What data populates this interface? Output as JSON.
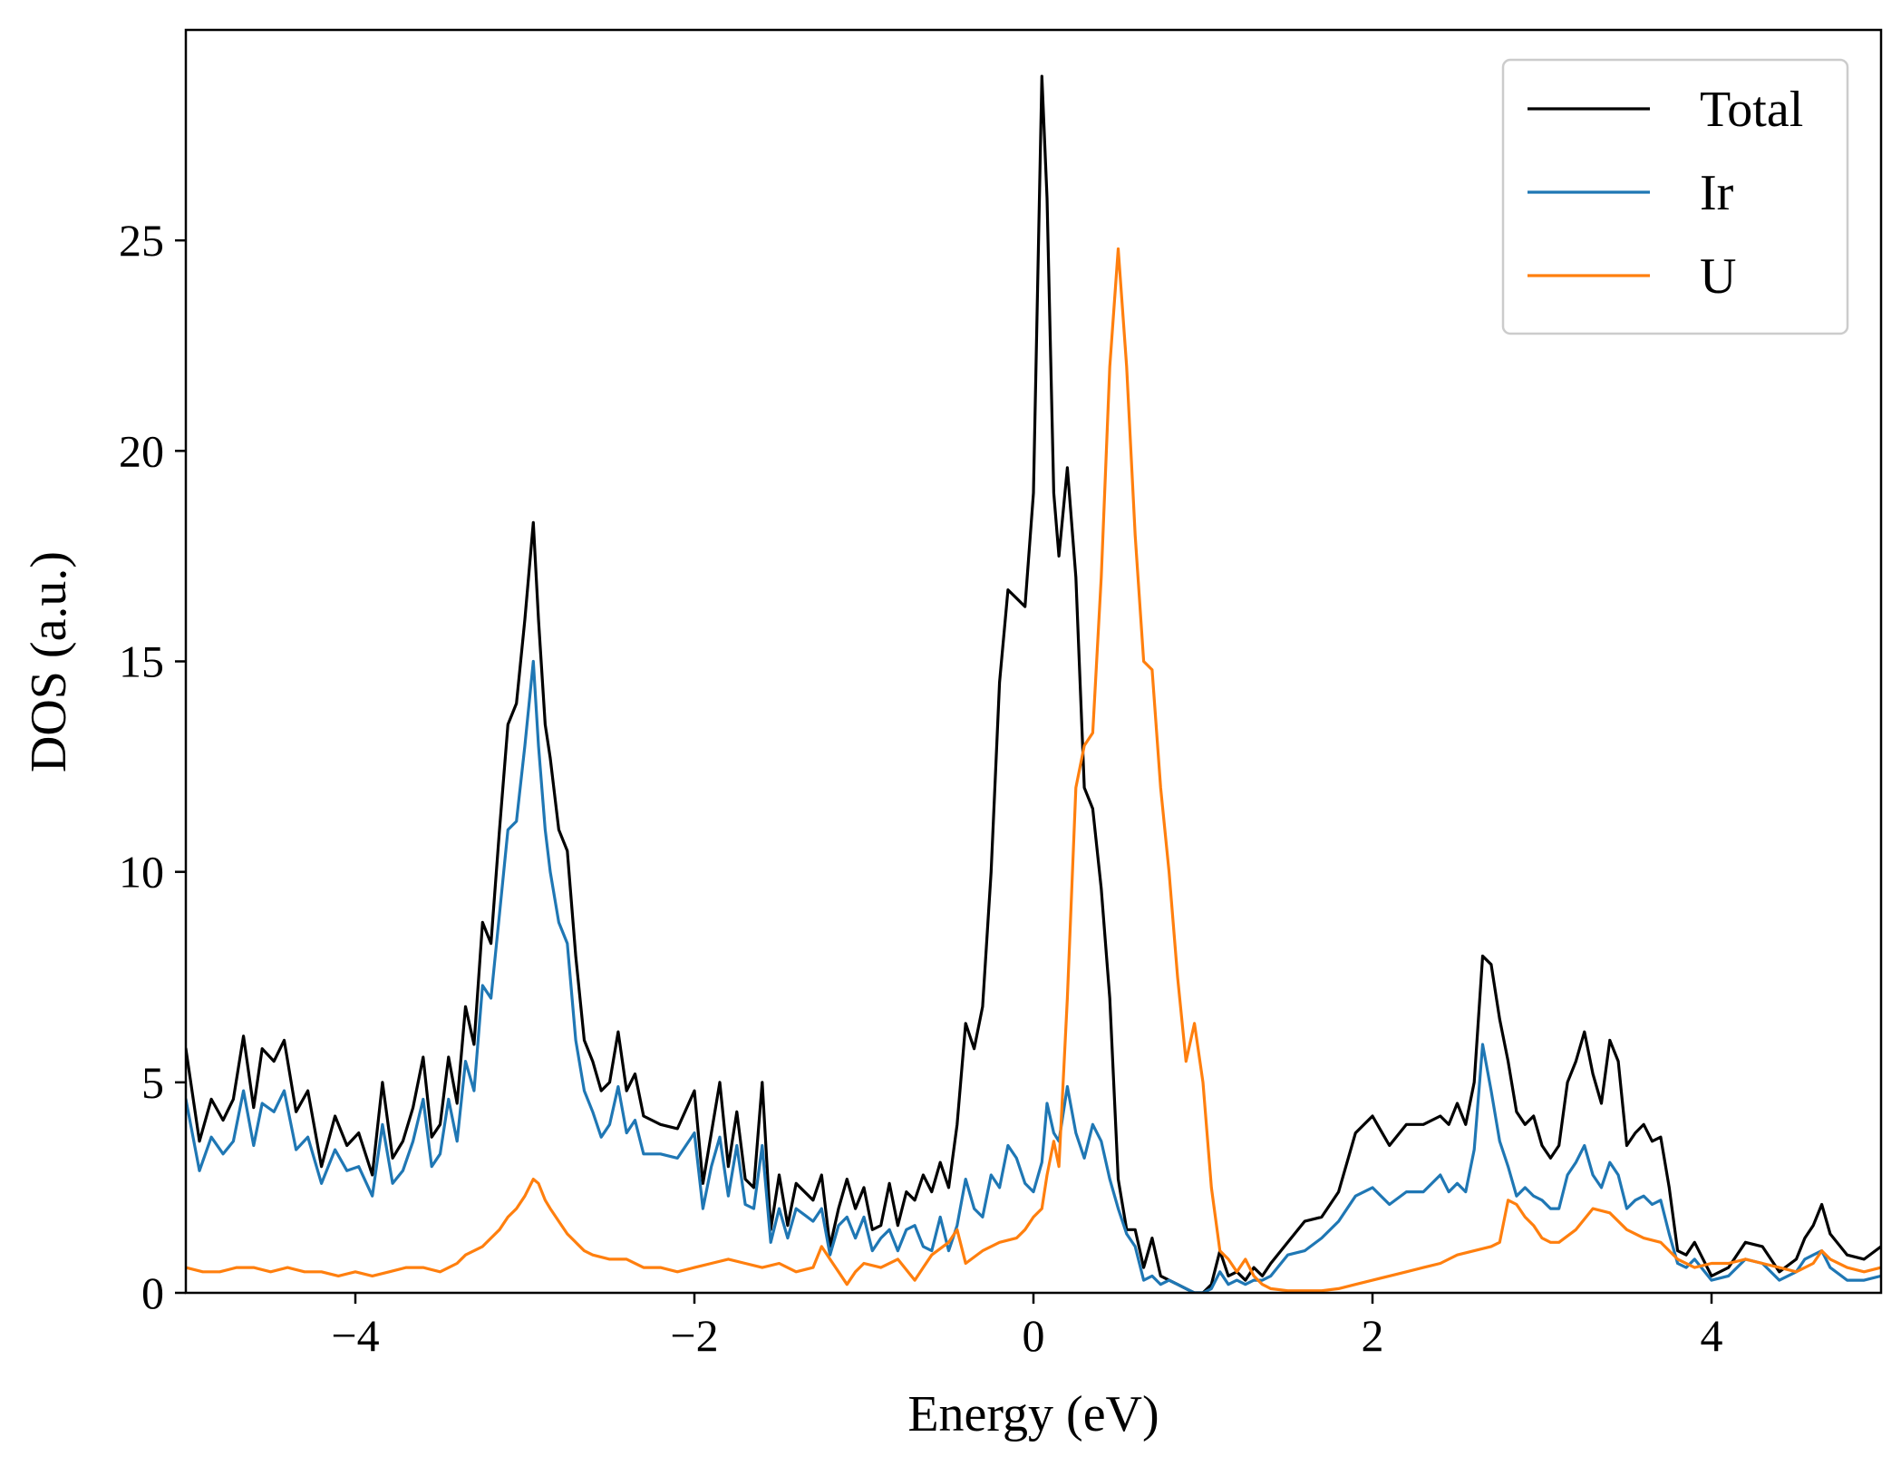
{
  "chart_data": {
    "type": "line",
    "title": "",
    "xlabel": "Energy (eV)",
    "ylabel": "DOS (a.u.)",
    "xlim": [
      -5,
      5
    ],
    "ylim": [
      0,
      30
    ],
    "xticks": [
      -4,
      -2,
      0,
      2,
      4
    ],
    "xtick_labels": [
      "−4",
      "−2",
      "0",
      "2",
      "4"
    ],
    "yticks": [
      0,
      5,
      10,
      15,
      20,
      25
    ],
    "ytick_labels": [
      "0",
      "5",
      "10",
      "15",
      "20",
      "25"
    ],
    "grid": false,
    "legend": "top-right",
    "series": [
      {
        "name": "Total",
        "color": "#000000",
        "x": [
          -5.0,
          -4.92,
          -4.85,
          -4.78,
          -4.72,
          -4.66,
          -4.6,
          -4.55,
          -4.48,
          -4.42,
          -4.35,
          -4.28,
          -4.2,
          -4.12,
          -4.05,
          -3.98,
          -3.9,
          -3.84,
          -3.78,
          -3.72,
          -3.66,
          -3.6,
          -3.55,
          -3.5,
          -3.45,
          -3.4,
          -3.35,
          -3.3,
          -3.25,
          -3.2,
          -3.15,
          -3.1,
          -3.05,
          -3.0,
          -2.95,
          -2.92,
          -2.88,
          -2.85,
          -2.8,
          -2.75,
          -2.7,
          -2.65,
          -2.6,
          -2.55,
          -2.5,
          -2.45,
          -2.4,
          -2.35,
          -2.3,
          -2.2,
          -2.1,
          -2.0,
          -1.95,
          -1.9,
          -1.85,
          -1.8,
          -1.75,
          -1.7,
          -1.65,
          -1.6,
          -1.55,
          -1.5,
          -1.45,
          -1.4,
          -1.3,
          -1.25,
          -1.2,
          -1.15,
          -1.1,
          -1.05,
          -1.0,
          -0.95,
          -0.9,
          -0.85,
          -0.8,
          -0.75,
          -0.7,
          -0.65,
          -0.6,
          -0.55,
          -0.5,
          -0.45,
          -0.4,
          -0.35,
          -0.3,
          -0.25,
          -0.2,
          -0.15,
          -0.1,
          -0.05,
          0.0,
          0.05,
          0.08,
          0.12,
          0.15,
          0.2,
          0.25,
          0.3,
          0.35,
          0.4,
          0.45,
          0.5,
          0.55,
          0.6,
          0.65,
          0.7,
          0.75,
          0.8,
          0.85,
          0.9,
          0.95,
          1.0,
          1.05,
          1.1,
          1.15,
          1.2,
          1.25,
          1.3,
          1.35,
          1.4,
          1.5,
          1.6,
          1.7,
          1.8,
          1.9,
          2.0,
          2.1,
          2.2,
          2.3,
          2.4,
          2.45,
          2.5,
          2.55,
          2.6,
          2.65,
          2.7,
          2.75,
          2.8,
          2.85,
          2.9,
          2.95,
          3.0,
          3.05,
          3.1,
          3.15,
          3.2,
          3.25,
          3.3,
          3.35,
          3.4,
          3.45,
          3.5,
          3.55,
          3.6,
          3.65,
          3.7,
          3.75,
          3.8,
          3.85,
          3.9,
          4.0,
          4.1,
          4.2,
          4.3,
          4.4,
          4.5,
          4.55,
          4.6,
          4.65,
          4.7,
          4.8,
          4.9,
          5.0
        ],
        "y": [
          5.8,
          3.6,
          4.6,
          4.1,
          4.6,
          6.1,
          4.4,
          5.8,
          5.5,
          6.0,
          4.3,
          4.8,
          3.0,
          4.2,
          3.5,
          3.8,
          2.8,
          5.0,
          3.2,
          3.6,
          4.4,
          5.6,
          3.7,
          4.0,
          5.6,
          4.5,
          6.8,
          5.9,
          8.8,
          8.3,
          11.0,
          13.5,
          14.0,
          16.0,
          18.3,
          16.0,
          13.5,
          12.7,
          11.0,
          10.5,
          8.0,
          6.0,
          5.5,
          4.8,
          5.0,
          6.2,
          4.8,
          5.2,
          4.2,
          4.0,
          3.9,
          4.8,
          2.6,
          3.8,
          5.0,
          3.0,
          4.3,
          2.7,
          2.5,
          5.0,
          1.5,
          2.8,
          1.6,
          2.6,
          2.2,
          2.8,
          1.1,
          2.0,
          2.7,
          2.0,
          2.5,
          1.5,
          1.6,
          2.6,
          1.6,
          2.4,
          2.2,
          2.8,
          2.4,
          3.1,
          2.5,
          4.0,
          6.4,
          5.8,
          6.8,
          10.0,
          14.5,
          16.7,
          16.5,
          16.3,
          19.0,
          28.9,
          26.0,
          19.0,
          17.5,
          19.6,
          17.0,
          12.0,
          11.5,
          9.6,
          7.0,
          2.7,
          1.5,
          1.5,
          0.6,
          1.3,
          0.4,
          0.3,
          0.2,
          0.1,
          0.0,
          0.0,
          0.2,
          1.0,
          0.4,
          0.5,
          0.3,
          0.6,
          0.4,
          0.7,
          1.2,
          1.7,
          1.8,
          2.4,
          3.8,
          4.2,
          3.5,
          4.0,
          4.0,
          4.2,
          4.0,
          4.5,
          4.0,
          5.0,
          8.0,
          7.8,
          6.5,
          5.5,
          4.3,
          4.0,
          4.2,
          3.5,
          3.2,
          3.5,
          5.0,
          5.5,
          6.2,
          5.2,
          4.5,
          6.0,
          5.5,
          3.5,
          3.8,
          4.0,
          3.6,
          3.7,
          2.5,
          1.0,
          0.9,
          1.2,
          0.4,
          0.6,
          1.2,
          1.1,
          0.5,
          0.8,
          1.3,
          1.6,
          2.1,
          1.4,
          0.9,
          0.8,
          1.1
        ]
      },
      {
        "name": "Ir",
        "color": "#1f77b4",
        "x": [
          -5.0,
          -4.92,
          -4.85,
          -4.78,
          -4.72,
          -4.66,
          -4.6,
          -4.55,
          -4.48,
          -4.42,
          -4.35,
          -4.28,
          -4.2,
          -4.12,
          -4.05,
          -3.98,
          -3.9,
          -3.84,
          -3.78,
          -3.72,
          -3.66,
          -3.6,
          -3.55,
          -3.5,
          -3.45,
          -3.4,
          -3.35,
          -3.3,
          -3.25,
          -3.2,
          -3.15,
          -3.1,
          -3.05,
          -3.0,
          -2.95,
          -2.92,
          -2.88,
          -2.85,
          -2.8,
          -2.75,
          -2.7,
          -2.65,
          -2.6,
          -2.55,
          -2.5,
          -2.45,
          -2.4,
          -2.35,
          -2.3,
          -2.2,
          -2.1,
          -2.0,
          -1.95,
          -1.9,
          -1.85,
          -1.8,
          -1.75,
          -1.7,
          -1.65,
          -1.6,
          -1.55,
          -1.5,
          -1.45,
          -1.4,
          -1.3,
          -1.25,
          -1.2,
          -1.15,
          -1.1,
          -1.05,
          -1.0,
          -0.95,
          -0.9,
          -0.85,
          -0.8,
          -0.75,
          -0.7,
          -0.65,
          -0.6,
          -0.55,
          -0.5,
          -0.45,
          -0.4,
          -0.35,
          -0.3,
          -0.25,
          -0.2,
          -0.15,
          -0.1,
          -0.05,
          0.0,
          0.05,
          0.08,
          0.12,
          0.15,
          0.2,
          0.25,
          0.3,
          0.35,
          0.4,
          0.45,
          0.5,
          0.55,
          0.6,
          0.65,
          0.7,
          0.75,
          0.8,
          0.85,
          0.9,
          0.95,
          1.0,
          1.05,
          1.1,
          1.15,
          1.2,
          1.25,
          1.3,
          1.35,
          1.4,
          1.5,
          1.6,
          1.7,
          1.8,
          1.9,
          2.0,
          2.1,
          2.2,
          2.3,
          2.4,
          2.45,
          2.5,
          2.55,
          2.6,
          2.65,
          2.7,
          2.75,
          2.8,
          2.85,
          2.9,
          2.95,
          3.0,
          3.05,
          3.1,
          3.15,
          3.2,
          3.25,
          3.3,
          3.35,
          3.4,
          3.45,
          3.5,
          3.55,
          3.6,
          3.65,
          3.7,
          3.75,
          3.8,
          3.85,
          3.9,
          4.0,
          4.1,
          4.2,
          4.3,
          4.4,
          4.5,
          4.55,
          4.6,
          4.65,
          4.7,
          4.8,
          4.9,
          5.0
        ],
        "y": [
          4.6,
          2.9,
          3.7,
          3.3,
          3.6,
          4.8,
          3.5,
          4.5,
          4.3,
          4.8,
          3.4,
          3.7,
          2.6,
          3.4,
          2.9,
          3.0,
          2.3,
          4.0,
          2.6,
          2.9,
          3.6,
          4.6,
          3.0,
          3.3,
          4.6,
          3.6,
          5.5,
          4.8,
          7.3,
          7.0,
          9.0,
          11.0,
          11.2,
          13.0,
          15.0,
          13.0,
          11.0,
          10.0,
          8.8,
          8.3,
          6.0,
          4.8,
          4.3,
          3.7,
          4.0,
          4.9,
          3.8,
          4.1,
          3.3,
          3.3,
          3.2,
          3.8,
          2.0,
          3.0,
          3.7,
          2.3,
          3.5,
          2.1,
          2.0,
          3.5,
          1.2,
          2.0,
          1.3,
          2.0,
          1.7,
          2.0,
          0.9,
          1.6,
          1.8,
          1.3,
          1.8,
          1.0,
          1.3,
          1.5,
          1.0,
          1.5,
          1.6,
          1.1,
          1.0,
          1.8,
          1.0,
          1.6,
          2.7,
          2.0,
          1.8,
          2.8,
          2.5,
          3.5,
          3.2,
          2.6,
          2.4,
          3.1,
          4.5,
          3.8,
          3.6,
          4.9,
          3.8,
          3.2,
          4.0,
          3.6,
          2.7,
          2.0,
          1.4,
          1.1,
          0.3,
          0.4,
          0.2,
          0.3,
          0.2,
          0.1,
          0.0,
          0.0,
          0.1,
          0.5,
          0.2,
          0.3,
          0.2,
          0.3,
          0.3,
          0.4,
          0.9,
          1.0,
          1.3,
          1.7,
          2.3,
          2.5,
          2.1,
          2.4,
          2.4,
          2.8,
          2.4,
          2.6,
          2.4,
          3.4,
          5.9,
          4.8,
          3.6,
          3.0,
          2.3,
          2.5,
          2.3,
          2.2,
          2.0,
          2.0,
          2.8,
          3.1,
          3.5,
          2.8,
          2.5,
          3.1,
          2.8,
          2.0,
          2.2,
          2.3,
          2.1,
          2.2,
          1.4,
          0.7,
          0.6,
          0.8,
          0.3,
          0.4,
          0.8,
          0.7,
          0.3,
          0.5,
          0.8,
          0.9,
          1.0,
          0.6,
          0.3,
          0.3,
          0.4
        ]
      },
      {
        "name": "U",
        "color": "#ff7f0e",
        "x": [
          -5.0,
          -4.9,
          -4.8,
          -4.7,
          -4.6,
          -4.5,
          -4.4,
          -4.3,
          -4.2,
          -4.1,
          -4.0,
          -3.9,
          -3.8,
          -3.7,
          -3.6,
          -3.5,
          -3.4,
          -3.35,
          -3.3,
          -3.25,
          -3.2,
          -3.15,
          -3.1,
          -3.05,
          -3.0,
          -2.95,
          -2.92,
          -2.88,
          -2.85,
          -2.8,
          -2.75,
          -2.7,
          -2.65,
          -2.6,
          -2.5,
          -2.4,
          -2.3,
          -2.2,
          -2.1,
          -2.0,
          -1.9,
          -1.8,
          -1.7,
          -1.6,
          -1.5,
          -1.4,
          -1.3,
          -1.25,
          -1.2,
          -1.15,
          -1.1,
          -1.05,
          -1.0,
          -0.9,
          -0.8,
          -0.7,
          -0.65,
          -0.6,
          -0.5,
          -0.45,
          -0.4,
          -0.3,
          -0.2,
          -0.1,
          -0.05,
          0.0,
          0.05,
          0.08,
          0.12,
          0.15,
          0.2,
          0.25,
          0.3,
          0.35,
          0.4,
          0.45,
          0.5,
          0.55,
          0.6,
          0.65,
          0.7,
          0.75,
          0.8,
          0.85,
          0.9,
          0.95,
          1.0,
          1.05,
          1.1,
          1.15,
          1.2,
          1.25,
          1.3,
          1.35,
          1.4,
          1.5,
          1.6,
          1.7,
          1.8,
          1.9,
          2.0,
          2.1,
          2.2,
          2.3,
          2.4,
          2.5,
          2.6,
          2.7,
          2.75,
          2.8,
          2.85,
          2.9,
          2.95,
          3.0,
          3.05,
          3.1,
          3.2,
          3.3,
          3.4,
          3.5,
          3.6,
          3.7,
          3.8,
          3.9,
          4.0,
          4.1,
          4.2,
          4.3,
          4.4,
          4.5,
          4.6,
          4.65,
          4.7,
          4.8,
          4.9,
          5.0
        ],
        "y": [
          0.6,
          0.5,
          0.5,
          0.6,
          0.6,
          0.5,
          0.6,
          0.5,
          0.5,
          0.4,
          0.5,
          0.4,
          0.5,
          0.6,
          0.6,
          0.5,
          0.7,
          0.9,
          1.0,
          1.1,
          1.3,
          1.5,
          1.8,
          2.0,
          2.3,
          2.7,
          2.6,
          2.2,
          2.0,
          1.7,
          1.4,
          1.2,
          1.0,
          0.9,
          0.8,
          0.8,
          0.6,
          0.6,
          0.5,
          0.6,
          0.7,
          0.8,
          0.7,
          0.6,
          0.7,
          0.5,
          0.6,
          1.1,
          0.8,
          0.5,
          0.2,
          0.5,
          0.7,
          0.6,
          0.8,
          0.3,
          0.6,
          0.9,
          1.2,
          1.5,
          0.7,
          1.0,
          1.2,
          1.3,
          1.5,
          1.8,
          2.0,
          2.8,
          3.6,
          3.0,
          7.0,
          12.0,
          13.0,
          13.3,
          17.0,
          22.0,
          24.8,
          22.0,
          18.0,
          15.0,
          14.8,
          12.0,
          10.0,
          7.5,
          5.5,
          6.4,
          5.0,
          2.5,
          1.0,
          0.8,
          0.5,
          0.8,
          0.4,
          0.2,
          0.1,
          0.05,
          0.05,
          0.05,
          0.1,
          0.2,
          0.3,
          0.4,
          0.5,
          0.6,
          0.7,
          0.9,
          1.0,
          1.1,
          1.2,
          2.2,
          2.1,
          1.8,
          1.6,
          1.3,
          1.2,
          1.2,
          1.5,
          2.0,
          1.9,
          1.5,
          1.3,
          1.2,
          0.8,
          0.6,
          0.7,
          0.7,
          0.8,
          0.7,
          0.6,
          0.5,
          0.7,
          1.0,
          0.8,
          0.6,
          0.5,
          0.6
        ]
      }
    ]
  }
}
